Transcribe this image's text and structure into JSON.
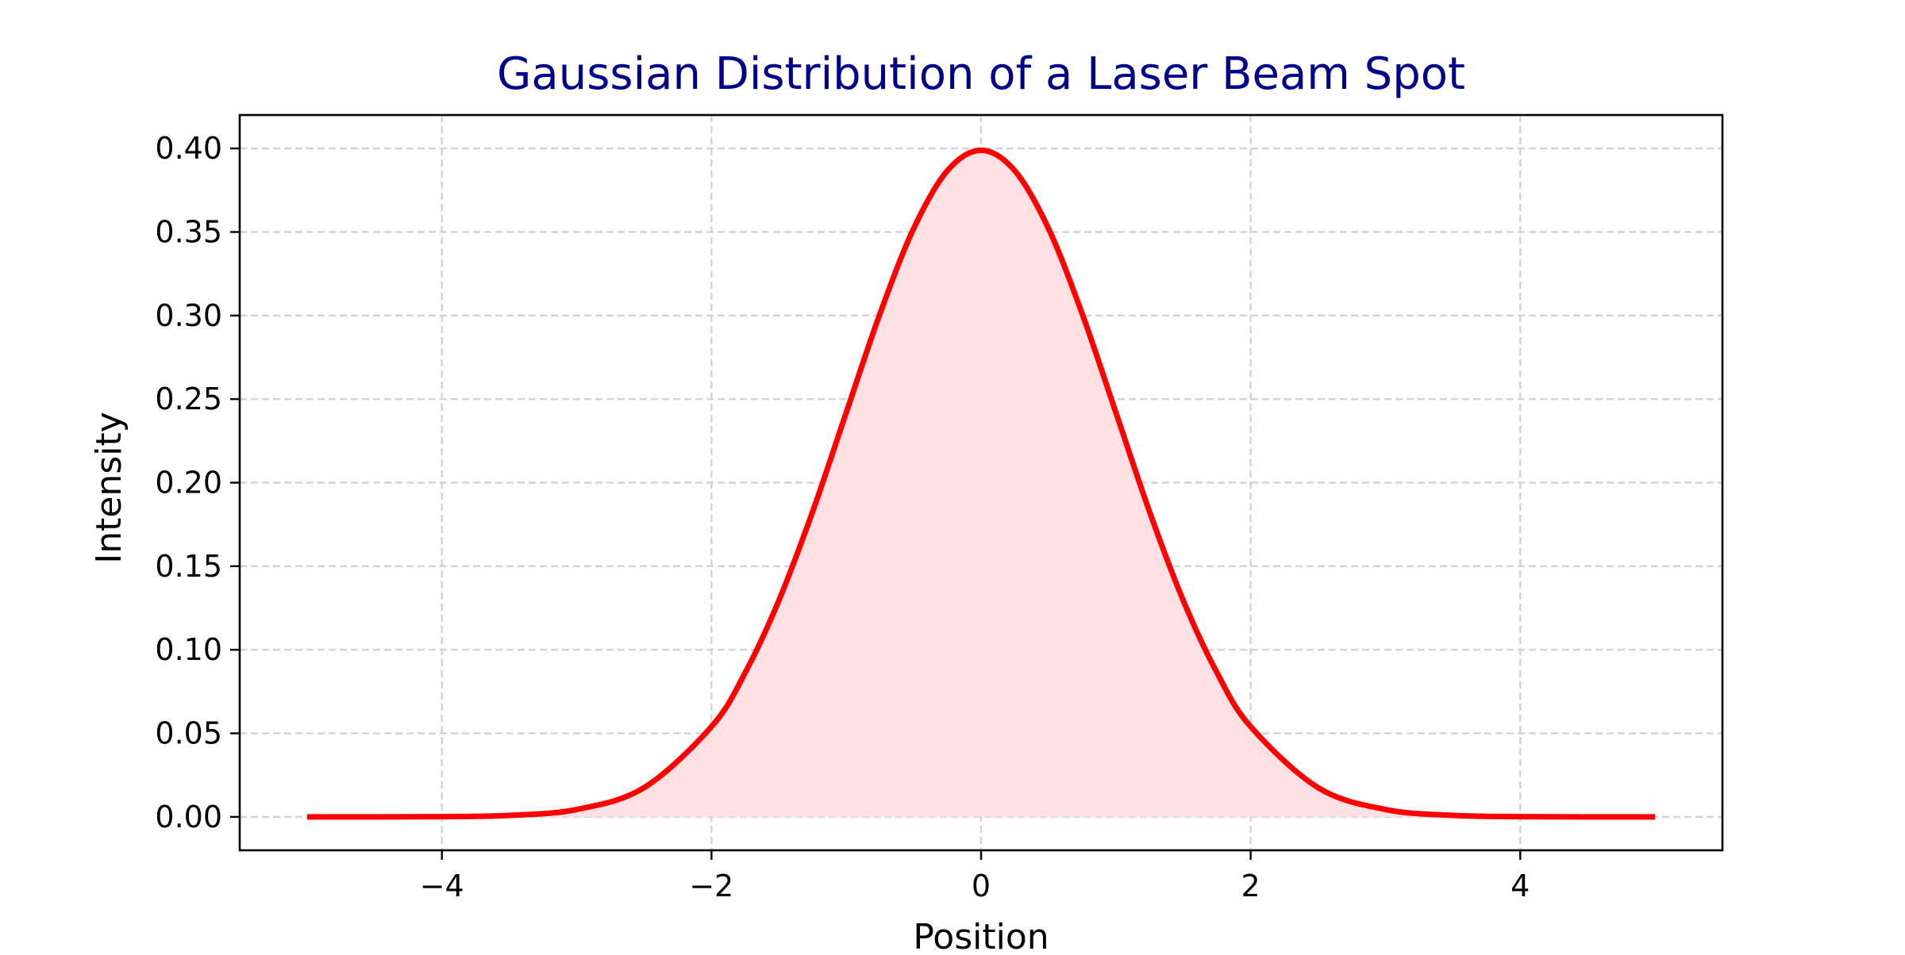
{
  "chart_data": {
    "type": "area",
    "title": "Gaussian Distribution of a Laser Beam Spot",
    "xlabel": "Position",
    "ylabel": "Intensity",
    "xlim": [
      -5.5,
      5.5
    ],
    "ylim": [
      -0.02,
      0.42
    ],
    "xticks": [
      -4,
      -2,
      0,
      2,
      4
    ],
    "xtick_labels": [
      "−4",
      "−2",
      "0",
      "2",
      "4"
    ],
    "yticks": [
      0.0,
      0.05,
      0.1,
      0.15,
      0.2,
      0.25,
      0.3,
      0.35,
      0.4
    ],
    "ytick_labels": [
      "0.00",
      "0.05",
      "0.10",
      "0.15",
      "0.20",
      "0.25",
      "0.30",
      "0.35",
      "0.40"
    ],
    "grid": true,
    "x": [
      -5.0,
      -4.5,
      -4.0,
      -3.5,
      -3.0,
      -2.5,
      -2.0,
      -1.75,
      -1.5,
      -1.25,
      -1.0,
      -0.75,
      -0.5,
      -0.25,
      0.0,
      0.25,
      0.5,
      0.75,
      1.0,
      1.25,
      1.5,
      1.75,
      2.0,
      2.5,
      3.0,
      3.5,
      4.0,
      4.5,
      5.0
    ],
    "series": [
      {
        "values": [
          1.5e-06,
          1.6e-05,
          0.000134,
          0.000873,
          0.00443,
          0.0175,
          0.054,
          0.0863,
          0.1295,
          0.1826,
          0.242,
          0.3011,
          0.3521,
          0.3867,
          0.3989,
          0.3867,
          0.3521,
          0.3011,
          0.242,
          0.1826,
          0.1295,
          0.0863,
          0.054,
          0.0175,
          0.00443,
          0.000873,
          0.000134,
          1.6e-05,
          1.5e-06
        ]
      }
    ],
    "colors": {
      "line": "#ff0000",
      "fill": "#ffe0e3",
      "title": "#00008b",
      "grid": "#d3d3d3",
      "axis": "#000000"
    }
  }
}
